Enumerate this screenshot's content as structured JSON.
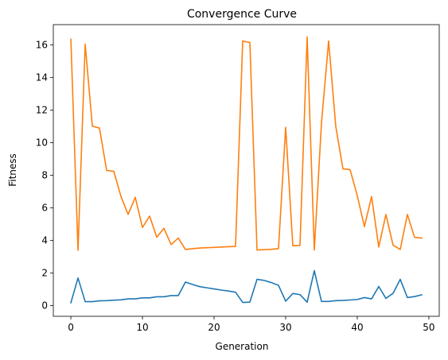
{
  "chart_data": {
    "type": "line",
    "title": "Convergence Curve",
    "xlabel": "Generation",
    "ylabel": "Fitness",
    "xlim": [
      -2.45,
      51.45
    ],
    "ylim": [
      -0.65,
      17.25
    ],
    "xticks": [
      0,
      10,
      20,
      30,
      40,
      50
    ],
    "yticks": [
      0,
      2,
      4,
      6,
      8,
      10,
      12,
      14,
      16
    ],
    "grid": false,
    "legend": "none",
    "x": [
      0,
      1,
      2,
      3,
      4,
      5,
      6,
      7,
      8,
      9,
      10,
      11,
      12,
      13,
      14,
      15,
      16,
      17,
      18,
      19,
      20,
      21,
      22,
      23,
      24,
      25,
      26,
      27,
      28,
      29,
      30,
      31,
      32,
      33,
      34,
      35,
      36,
      37,
      38,
      39,
      40,
      41,
      42,
      43,
      44,
      45,
      46,
      47,
      48,
      49
    ],
    "series": [
      {
        "color": "#1f77b4",
        "values": [
          0.18,
          1.7,
          0.25,
          0.25,
          0.3,
          0.31,
          0.34,
          0.36,
          0.42,
          0.42,
          0.48,
          0.48,
          0.55,
          0.55,
          0.62,
          0.62,
          1.45,
          1.3,
          1.17,
          1.1,
          1.03,
          0.96,
          0.9,
          0.83,
          0.2,
          0.22,
          1.62,
          1.55,
          1.42,
          1.25,
          0.28,
          0.75,
          0.68,
          0.22,
          2.15,
          0.26,
          0.26,
          0.31,
          0.32,
          0.35,
          0.38,
          0.5,
          0.42,
          1.18,
          0.45,
          0.76,
          1.62,
          0.5,
          0.56,
          0.67
        ]
      },
      {
        "color": "#ff7f0e",
        "values": [
          16.35,
          3.4,
          16.05,
          11.02,
          10.9,
          8.3,
          8.25,
          6.7,
          5.6,
          6.65,
          4.8,
          5.5,
          4.2,
          4.75,
          3.75,
          4.15,
          3.45,
          3.5,
          3.54,
          3.56,
          3.58,
          3.6,
          3.62,
          3.64,
          16.25,
          16.15,
          3.42,
          3.44,
          3.46,
          3.5,
          10.95,
          3.68,
          3.7,
          16.5,
          3.42,
          11.2,
          16.25,
          11.0,
          8.4,
          8.35,
          6.75,
          4.85,
          6.7,
          3.6,
          5.6,
          3.72,
          3.45,
          5.6,
          4.2,
          4.15
        ]
      }
    ]
  }
}
